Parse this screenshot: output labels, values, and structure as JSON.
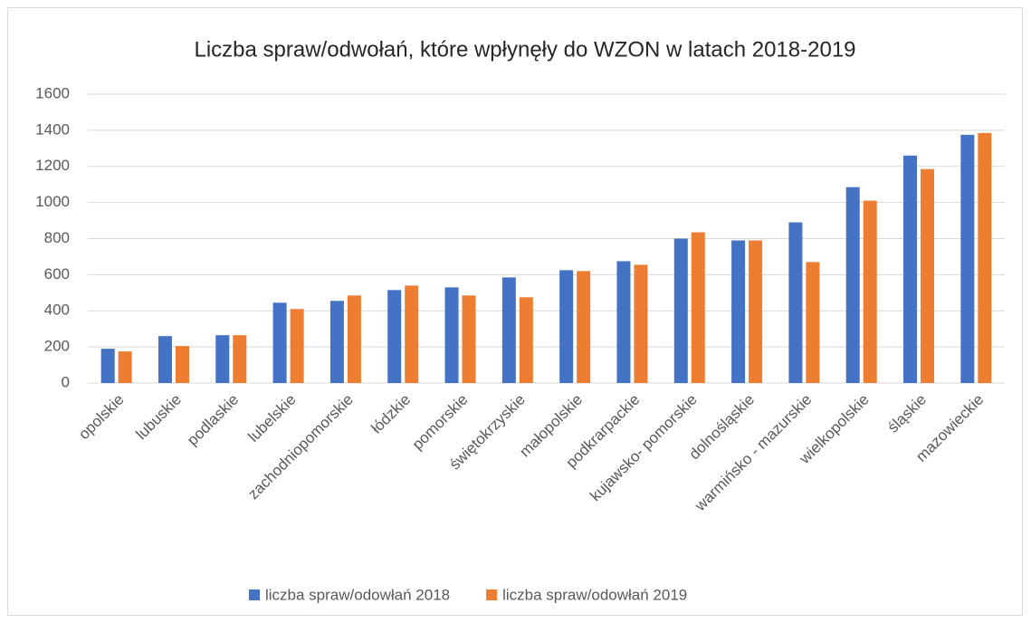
{
  "chart_data": {
    "type": "bar",
    "title": "Liczba spraw/odwołań, które wpłynęły do WZON w latach 2018-2019",
    "categories": [
      "opolskie",
      "lubuskie",
      "podlaskie",
      "lubelskie",
      "zachodniopomorskie",
      "łódzkie",
      "pomorskie",
      "świętokrzyskie",
      "małopolskie",
      "podkrarpackie",
      "kujawsko- pomorskie",
      "dolnośląskie",
      "warmińsko - mazurskie",
      "wielkopolskie",
      "śląskie",
      "mazowieckie"
    ],
    "series": [
      {
        "name": "liczba spraw/odowłań 2018",
        "color": "#4472c4",
        "values": [
          190,
          260,
          265,
          445,
          455,
          515,
          530,
          585,
          625,
          675,
          800,
          790,
          890,
          1085,
          1260,
          1375
        ]
      },
      {
        "name": "liczba spraw/odowłań 2019",
        "color": "#ed7d31",
        "values": [
          175,
          205,
          265,
          410,
          485,
          540,
          485,
          475,
          620,
          655,
          835,
          790,
          670,
          1010,
          1185,
          1385
        ]
      }
    ],
    "ylim": [
      0,
      1600
    ],
    "yticks": [
      0,
      200,
      400,
      600,
      800,
      1000,
      1200,
      1400,
      1600
    ],
    "grid": true,
    "legend": "bottom"
  }
}
